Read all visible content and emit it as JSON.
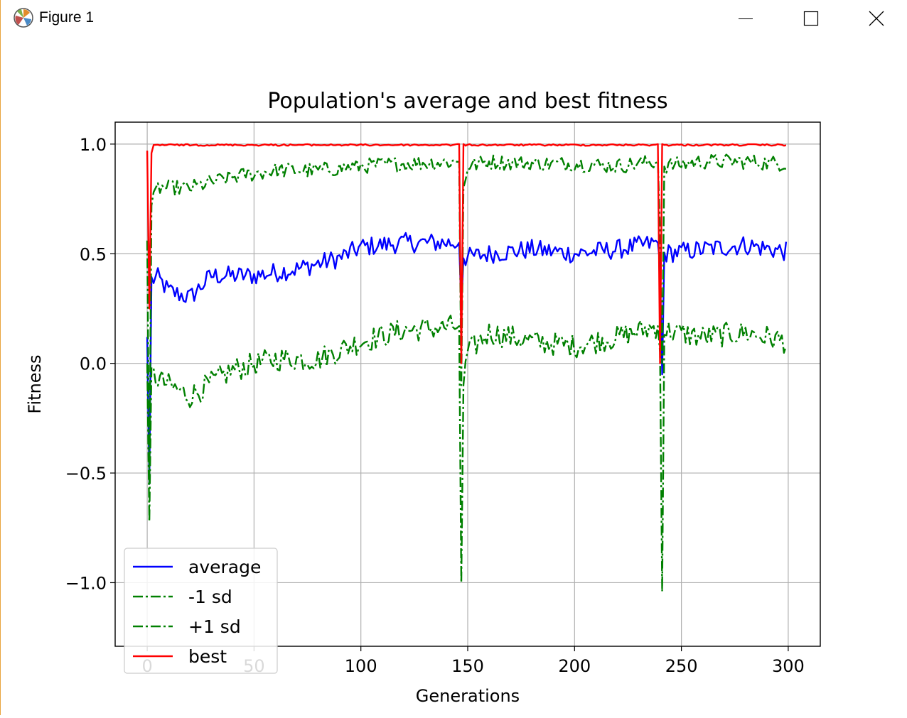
{
  "window": {
    "title": "Figure 1",
    "controls": {
      "minimize": "minimize",
      "maximize": "maximize",
      "close": "close"
    }
  },
  "chart_data": {
    "type": "line",
    "title": "Population's average and best fitness",
    "xlabel": "Generations",
    "ylabel": "Fitness",
    "xlim": [
      -15,
      315
    ],
    "ylim": [
      -1.29,
      1.1
    ],
    "xticks": [
      0,
      50,
      100,
      150,
      200,
      250,
      300
    ],
    "xtick_labels": [
      "0",
      "50",
      "100",
      "150",
      "200",
      "250",
      "300"
    ],
    "yticks": [
      -1.0,
      -0.5,
      0.0,
      0.5,
      1.0
    ],
    "ytick_labels": [
      "−1.0",
      "−0.5",
      "0.0",
      "0.5",
      "1.0"
    ],
    "grid": true,
    "legend_position": "lower-left",
    "generations": 300,
    "restart_points": [
      0,
      147,
      240
    ],
    "series": [
      {
        "name": "average",
        "color": "#0000ff",
        "style": "solid",
        "anchors": [
          [
            0,
            0.12
          ],
          [
            1,
            -0.55
          ],
          [
            2,
            0.38
          ],
          [
            5,
            0.39
          ],
          [
            10,
            0.33
          ],
          [
            20,
            0.3
          ],
          [
            30,
            0.4
          ],
          [
            50,
            0.4
          ],
          [
            70,
            0.43
          ],
          [
            90,
            0.48
          ],
          [
            100,
            0.53
          ],
          [
            120,
            0.55
          ],
          [
            146,
            0.55
          ],
          [
            147,
            0.25
          ],
          [
            148,
            0.48
          ],
          [
            160,
            0.5
          ],
          [
            180,
            0.52
          ],
          [
            200,
            0.5
          ],
          [
            220,
            0.52
          ],
          [
            239,
            0.55
          ],
          [
            240,
            0.45
          ],
          [
            241,
            -0.05
          ],
          [
            242,
            0.5
          ],
          [
            260,
            0.52
          ],
          [
            280,
            0.54
          ],
          [
            299,
            0.51
          ]
        ]
      },
      {
        "name": "-1 sd",
        "color": "#008000",
        "style": "dashdot",
        "anchors": [
          [
            0,
            0.0
          ],
          [
            1,
            -0.72
          ],
          [
            2,
            -0.05
          ],
          [
            10,
            -0.1
          ],
          [
            20,
            -0.15
          ],
          [
            40,
            -0.03
          ],
          [
            60,
            0.02
          ],
          [
            80,
            0.02
          ],
          [
            100,
            0.1
          ],
          [
            120,
            0.15
          ],
          [
            146,
            0.17
          ],
          [
            147,
            -1.0
          ],
          [
            148,
            -0.1
          ],
          [
            150,
            0.05
          ],
          [
            160,
            0.14
          ],
          [
            180,
            0.1
          ],
          [
            200,
            0.08
          ],
          [
            220,
            0.12
          ],
          [
            239,
            0.17
          ],
          [
            240,
            0.05
          ],
          [
            241,
            -1.04
          ],
          [
            242,
            0.15
          ],
          [
            260,
            0.12
          ],
          [
            280,
            0.14
          ],
          [
            299,
            0.1
          ]
        ]
      },
      {
        "name": "+1 sd",
        "color": "#008000",
        "style": "dashdot",
        "anchors": [
          [
            0,
            0.56
          ],
          [
            1,
            -0.55
          ],
          [
            2,
            0.72
          ],
          [
            5,
            0.8
          ],
          [
            20,
            0.8
          ],
          [
            40,
            0.85
          ],
          [
            60,
            0.88
          ],
          [
            80,
            0.88
          ],
          [
            100,
            0.9
          ],
          [
            120,
            0.91
          ],
          [
            146,
            0.92
          ],
          [
            147,
            -0.1
          ],
          [
            148,
            0.8
          ],
          [
            150,
            0.9
          ],
          [
            160,
            0.92
          ],
          [
            180,
            0.91
          ],
          [
            200,
            0.91
          ],
          [
            220,
            0.9
          ],
          [
            239,
            0.92
          ],
          [
            240,
            0.6
          ],
          [
            241,
            0.0
          ],
          [
            242,
            0.9
          ],
          [
            260,
            0.92
          ],
          [
            280,
            0.92
          ],
          [
            299,
            0.91
          ]
        ]
      },
      {
        "name": "best",
        "color": "#ff0000",
        "style": "solid",
        "anchors": [
          [
            0,
            0.97
          ],
          [
            1,
            0.25
          ],
          [
            2,
            0.96
          ],
          [
            3,
            1.0
          ],
          [
            146,
            1.0
          ],
          [
            147,
            0.0
          ],
          [
            148,
            1.0
          ],
          [
            239,
            1.0
          ],
          [
            240,
            0.0
          ],
          [
            241,
            1.0
          ],
          [
            299,
            1.0
          ]
        ]
      }
    ]
  }
}
